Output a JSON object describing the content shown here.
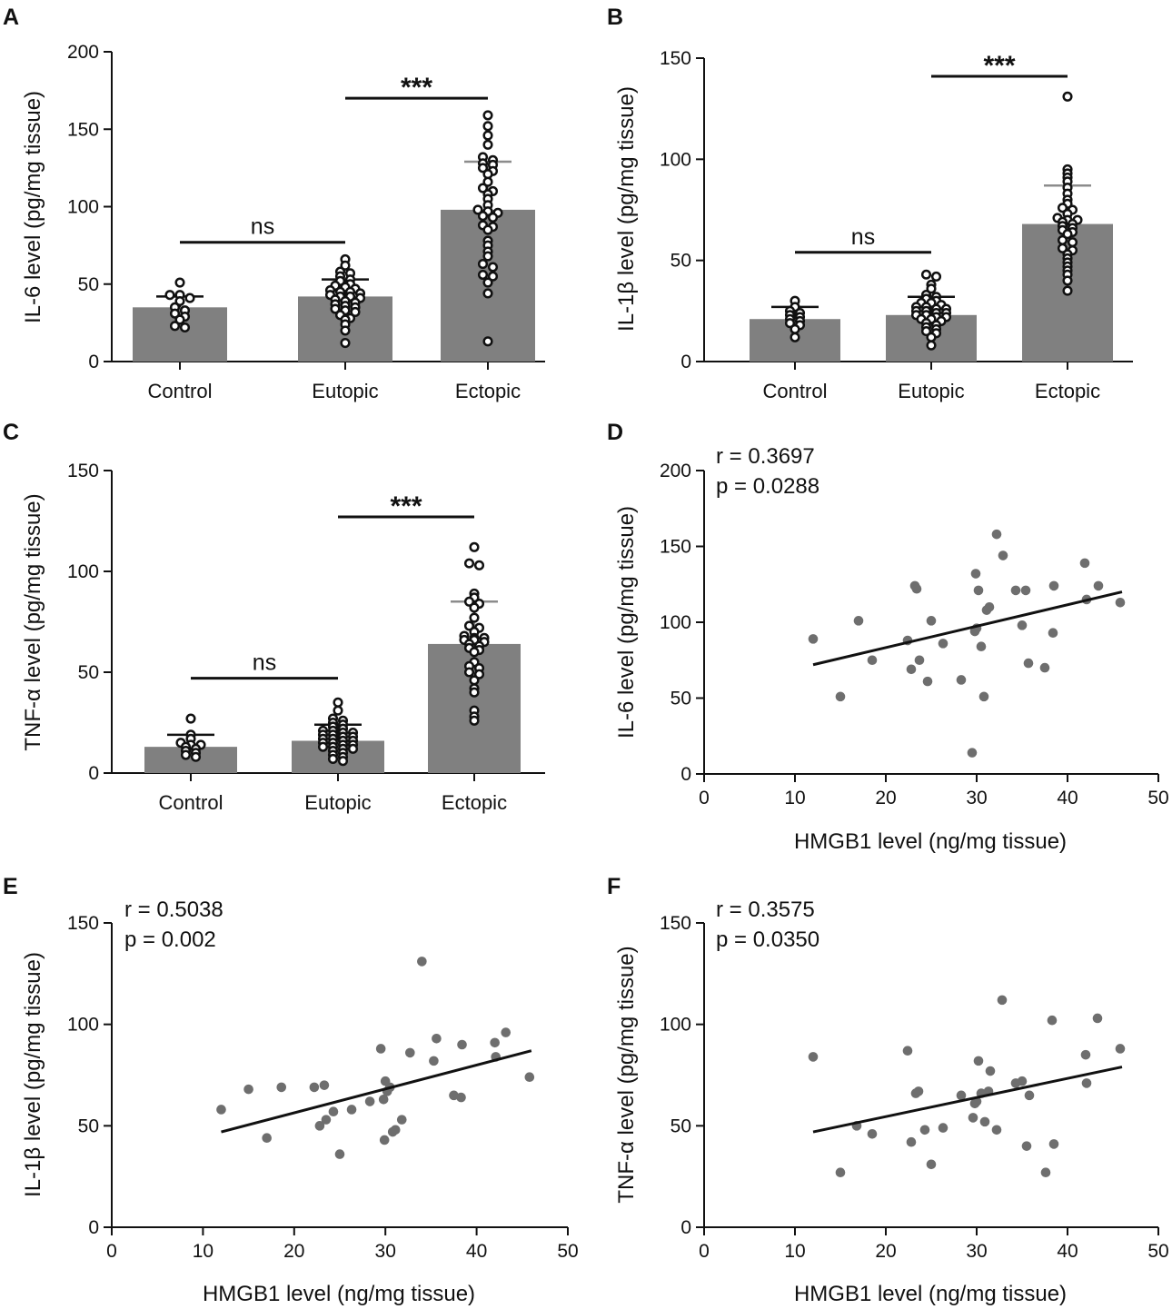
{
  "colors": {
    "bar": "#808080",
    "marker_fill": "#ffffff",
    "marker_stroke": "#111111",
    "scatter_dot": "#6e6e6e",
    "axis": "#111111"
  },
  "chart_data": [
    {
      "panel": "A",
      "type": "bar",
      "ylabel": "IL-6 level (pg/mg tissue)",
      "categories": [
        "Control",
        "Eutopic",
        "Ectopic"
      ],
      "ylim": [
        0,
        200
      ],
      "yticks": [
        0,
        50,
        100,
        150,
        200
      ],
      "means": [
        35,
        42,
        98
      ],
      "sd": [
        7,
        11,
        31
      ],
      "points": [
        [
          51,
          43,
          43,
          41,
          39,
          35,
          33,
          31,
          29,
          27,
          23,
          22
        ],
        [
          66,
          62,
          58,
          57,
          55,
          53,
          52,
          50,
          49,
          48,
          47,
          46,
          45,
          45,
          44,
          43,
          42,
          42,
          41,
          40,
          39,
          38,
          37,
          36,
          35,
          34,
          33,
          32,
          30,
          28,
          27,
          24,
          20,
          12
        ],
        [
          159,
          152,
          146,
          140,
          132,
          130,
          128,
          127,
          125,
          123,
          121,
          116,
          112,
          110,
          108,
          105,
          101,
          98,
          97,
          96,
          94,
          93,
          88,
          87,
          85,
          78,
          75,
          71,
          68,
          63,
          61,
          56,
          55,
          51,
          44,
          13
        ]
      ],
      "comparisons": [
        {
          "from": "Control",
          "to": "Eutopic",
          "label": "ns",
          "level": 77
        },
        {
          "from": "Eutopic",
          "to": "Ectopic",
          "label": "***",
          "level": 170
        }
      ]
    },
    {
      "panel": "B",
      "type": "bar",
      "ylabel": "IL-1β level (pg/mg tissue)",
      "categories": [
        "Control",
        "Eutopic",
        "Ectopic"
      ],
      "ylim": [
        0,
        150
      ],
      "yticks": [
        0,
        50,
        100,
        150
      ],
      "means": [
        21,
        23,
        68
      ],
      "sd": [
        6,
        9,
        19
      ],
      "points": [
        [
          30,
          27,
          25,
          24,
          23,
          22,
          21,
          20,
          19,
          18,
          16,
          12
        ],
        [
          43,
          42,
          38,
          36,
          33,
          32,
          31,
          30,
          29,
          29,
          28,
          27,
          27,
          26,
          26,
          25,
          25,
          24,
          24,
          23,
          23,
          22,
          22,
          21,
          21,
          20,
          19,
          18,
          17,
          16,
          15,
          14,
          12,
          8
        ],
        [
          131,
          95,
          93,
          91,
          89,
          86,
          83,
          80,
          78,
          76,
          75,
          73,
          71,
          70,
          70,
          69,
          68,
          67,
          66,
          65,
          64,
          63,
          60,
          59,
          56,
          55,
          53,
          51,
          49,
          47,
          45,
          43,
          40,
          35
        ]
      ],
      "comparisons": [
        {
          "from": "Control",
          "to": "Eutopic",
          "label": "ns",
          "level": 54
        },
        {
          "from": "Eutopic",
          "to": "Ectopic",
          "label": "***",
          "level": 141
        }
      ]
    },
    {
      "panel": "C",
      "type": "bar",
      "ylabel": "TNF-α level (pg/mg tissue)",
      "categories": [
        "Control",
        "Eutopic",
        "Ectopic"
      ],
      "ylim": [
        0,
        150
      ],
      "yticks": [
        0,
        50,
        100,
        150
      ],
      "means": [
        13,
        16,
        64
      ],
      "sd": [
        6,
        8,
        21
      ],
      "points": [
        [
          27,
          19,
          17,
          15,
          14,
          14,
          13,
          12,
          11,
          10,
          9,
          8
        ],
        [
          35,
          31,
          27,
          26,
          25,
          24,
          23,
          22,
          21,
          21,
          20,
          20,
          19,
          19,
          18,
          18,
          17,
          17,
          16,
          16,
          15,
          15,
          14,
          14,
          13,
          13,
          12,
          12,
          11,
          10,
          9,
          8,
          7,
          6
        ],
        [
          112,
          104,
          103,
          89,
          87,
          85,
          84,
          82,
          77,
          73,
          72,
          70,
          68,
          67,
          67,
          66,
          66,
          65,
          64,
          63,
          62,
          61,
          60,
          55,
          53,
          52,
          50,
          49,
          46,
          42,
          40,
          31,
          28,
          26
        ]
      ],
      "comparisons": [
        {
          "from": "Control",
          "to": "Eutopic",
          "label": "ns",
          "level": 47
        },
        {
          "from": "Eutopic",
          "to": "Ectopic",
          "label": "***",
          "level": 127
        }
      ]
    },
    {
      "panel": "D",
      "type": "scatter",
      "xlabel": "HMGB1 level (ng/mg tissue)",
      "ylabel": "IL-6 level (pg/mg tissue)",
      "xlim": [
        0,
        50
      ],
      "ylim": [
        0,
        200
      ],
      "xticks": [
        0,
        10,
        20,
        30,
        40,
        50
      ],
      "yticks": [
        0,
        50,
        100,
        150,
        200
      ],
      "r_text": "r = 0.3697",
      "p_text": "p = 0.0288",
      "fit": {
        "x": [
          12,
          46
        ],
        "y": [
          72,
          120
        ]
      },
      "x": [
        12,
        15,
        17,
        18.5,
        22.4,
        22.8,
        23.2,
        23.4,
        23.7,
        24.6,
        25,
        26.3,
        28.3,
        29.5,
        29.8,
        29.9,
        30,
        30.2,
        30.5,
        30.8,
        31.1,
        31.4,
        32.2,
        32.9,
        34.3,
        35,
        35.4,
        35.7,
        37.5,
        38.4,
        38.5,
        41.9,
        42.1,
        43.4,
        45.8
      ],
      "y": [
        89,
        51,
        101,
        75,
        88,
        69,
        124,
        122,
        75,
        61,
        101,
        86,
        62,
        14,
        94,
        132,
        96,
        121,
        84,
        51,
        108,
        110,
        158,
        144,
        121,
        98,
        121,
        73,
        70,
        93,
        124,
        139,
        115,
        124,
        113
      ]
    },
    {
      "panel": "E",
      "type": "scatter",
      "xlabel": "HMGB1 level (ng/mg tissue)",
      "ylabel": "IL-1β level (pg/mg tissue)",
      "xlim": [
        0,
        50
      ],
      "ylim": [
        0,
        150
      ],
      "xticks": [
        0,
        10,
        20,
        30,
        40,
        50
      ],
      "yticks": [
        0,
        50,
        100,
        150
      ],
      "r_text": "r = 0.5038",
      "p_text": "p = 0.002",
      "fit": {
        "x": [
          12,
          46
        ],
        "y": [
          47,
          87
        ]
      },
      "x": [
        12,
        15,
        17,
        18.6,
        22.2,
        22.8,
        23.3,
        23.5,
        24.3,
        25,
        26.3,
        28.3,
        29.5,
        29.8,
        29.9,
        30,
        30.2,
        30.5,
        30.8,
        31.1,
        31.8,
        32.7,
        34,
        35.3,
        35.6,
        37.5,
        38.3,
        38.4,
        42,
        42.1,
        43.2,
        45.8
      ],
      "y": [
        58,
        68,
        44,
        69,
        69,
        50,
        70,
        53,
        57,
        36,
        58,
        62,
        88,
        63,
        43,
        72,
        67,
        69,
        47,
        48,
        53,
        86,
        131,
        82,
        93,
        65,
        64,
        90,
        91,
        84,
        96,
        74
      ]
    },
    {
      "panel": "F",
      "type": "scatter",
      "xlabel": "HMGB1 level (ng/mg tissue)",
      "ylabel": "TNF-α level (pg/mg tissue)",
      "xlim": [
        0,
        50
      ],
      "ylim": [
        0,
        150
      ],
      "xticks": [
        0,
        10,
        20,
        30,
        40,
        50
      ],
      "yticks": [
        0,
        50,
        100,
        150
      ],
      "r_text": "r = 0.3575",
      "p_text": "p = 0.0350",
      "fit": {
        "x": [
          12,
          46
        ],
        "y": [
          47,
          79
        ]
      },
      "x": [
        12,
        15,
        16.8,
        18.5,
        22.4,
        22.8,
        23.3,
        23.6,
        24.3,
        25,
        26.3,
        28.3,
        29.6,
        29.8,
        30,
        30.2,
        30.5,
        30.9,
        31.3,
        31.5,
        32.2,
        32.8,
        34.3,
        35,
        35.5,
        35.8,
        37.6,
        38.3,
        38.5,
        42,
        42.1,
        43.3,
        45.8
      ],
      "y": [
        84,
        27,
        50,
        46,
        87,
        42,
        66,
        67,
        48,
        31,
        49,
        65,
        54,
        61,
        62,
        82,
        66,
        52,
        67,
        77,
        48,
        112,
        71,
        72,
        40,
        65,
        27,
        102,
        41,
        85,
        71,
        103,
        88
      ]
    }
  ]
}
